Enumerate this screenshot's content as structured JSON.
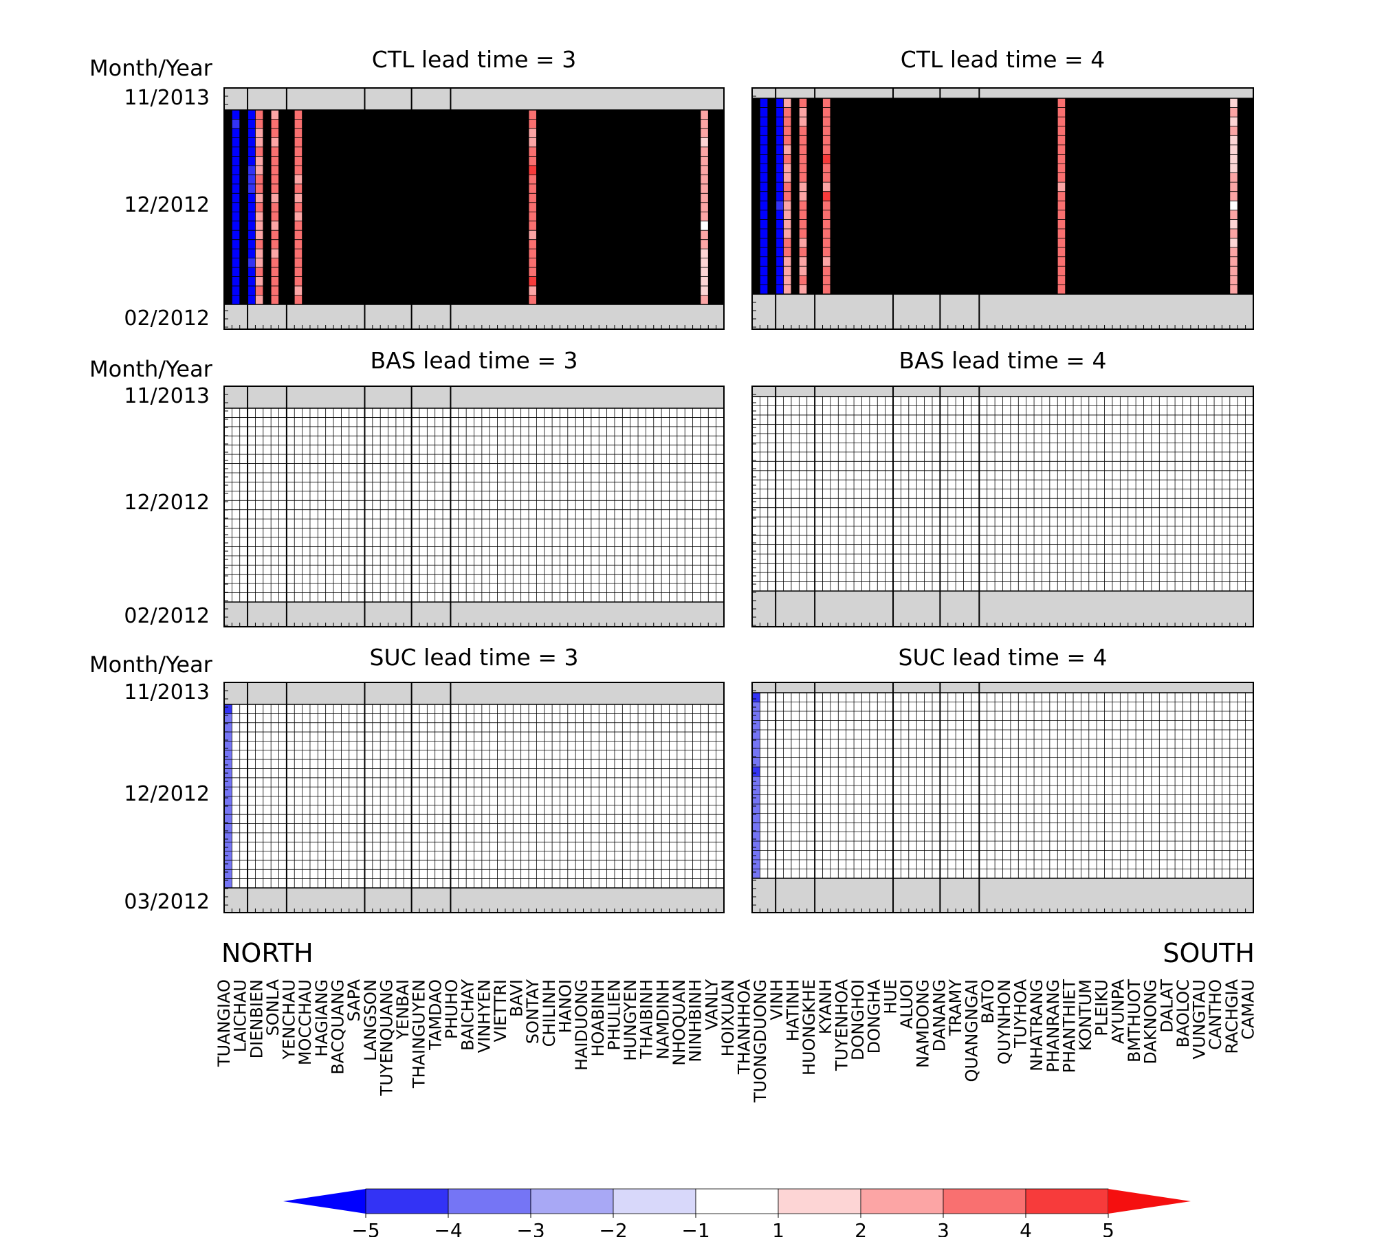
{
  "figure": {
    "left_label": "NORTH",
    "right_label": "SOUTH"
  },
  "colors": {
    "neg5": "#0000ff",
    "neg4": "#3333f5",
    "neg3": "#7575f5",
    "neg2": "#a8a8f5",
    "neg1": "#d8d8fa",
    "zero": "#ffffff",
    "pos1": "#fdd5d5",
    "pos2": "#fca5a5",
    "pos3": "#f97070",
    "pos4": "#f73b3b",
    "pos5": "#f50f0f",
    "missing": "#d3d3d3",
    "grid": "#000000"
  },
  "stations": [
    "TUANGIAO",
    "LAICHAU",
    "DIENBIEN",
    "SONLA",
    "YENCHAU",
    "MOCCHAU",
    "HAGIANG",
    "BACQUANG",
    "SAPA",
    "LANGSON",
    "TUYENQUANG",
    "YENBAI",
    "THAINGUYEN",
    "TAMDAO",
    "PHUHO",
    "BAICHAY",
    "VINHYEN",
    "VIETTRI",
    "BAVI",
    "SONTAY",
    "CHILINH",
    "HANOI",
    "HAIDUONG",
    "HOABINH",
    "PHULIEN",
    "HUNGYEN",
    "THAIBINH",
    "NAMDINH",
    "NHOQUAN",
    "NINHBINH",
    "VANLY",
    "HOIXUAN",
    "THANHHOA",
    "TUONGDUONG",
    "VINH",
    "HATINH",
    "HUONGKHE",
    "KYANH",
    "TUYENHOA",
    "DONGHOI",
    "DONGHA",
    "HUE",
    "ALUOI",
    "NAMDONG",
    "DANANG",
    "TRAMY",
    "QUANGNGAI",
    "BATO",
    "QUYNHON",
    "TUYHOA",
    "NHATRANG",
    "PHANRANG",
    "PHANTHIET",
    "KONTUM",
    "PLEIKU",
    "AYUNPA",
    "BMTHUOT",
    "DAKNONG",
    "DALAT",
    "BAOLOC",
    "VUNGTAU",
    "CANTHO",
    "RACHGIA",
    "CAMAU"
  ],
  "chart_data": [
    {
      "type": "heatmap",
      "title": "CTL lead time = 3",
      "ylabel": "Month/Year",
      "yticks": [
        "11/2013",
        "12/2012",
        "02/2012"
      ],
      "grid": true
    },
    {
      "type": "heatmap",
      "title": "CTL lead time = 4",
      "ylabel": "",
      "yticks": [],
      "grid": true
    },
    {
      "type": "heatmap",
      "title": "BAS lead time = 3",
      "ylabel": "Month/Year",
      "yticks": [
        "11/2013",
        "12/2012",
        "02/2012"
      ],
      "grid": true
    },
    {
      "type": "heatmap",
      "title": "BAS lead time = 4",
      "ylabel": "",
      "yticks": [],
      "grid": true
    },
    {
      "type": "heatmap",
      "title": "SUC lead time = 3",
      "ylabel": "Month/Year",
      "yticks": [
        "11/2013",
        "12/2012",
        "03/2012"
      ],
      "grid": true
    },
    {
      "type": "heatmap",
      "title": "SUC lead time = 4",
      "ylabel": "",
      "yticks": [],
      "grid": true
    }
  ],
  "colorbar": {
    "ticks": [
      "−5",
      "−4",
      "−3",
      "−2",
      "−1",
      "1",
      "2",
      "3",
      "4",
      "5"
    ],
    "bins": [
      "neg5",
      "neg4",
      "neg3",
      "neg2",
      "neg1",
      "zero",
      "pos1",
      "pos2",
      "pos3",
      "pos4",
      "pos5"
    ]
  }
}
